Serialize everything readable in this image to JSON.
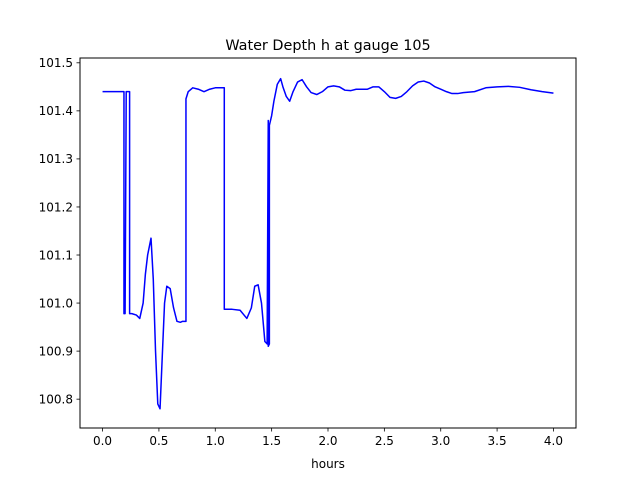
{
  "chart_data": {
    "type": "line",
    "title": "Water Depth h at gauge 105",
    "xlabel": "hours",
    "ylabel": "",
    "xlim": [
      -0.2,
      4.2
    ],
    "ylim": [
      100.74,
      101.51
    ],
    "xticks": [
      0.0,
      0.5,
      1.0,
      1.5,
      2.0,
      2.5,
      3.0,
      3.5,
      4.0
    ],
    "xtick_labels": [
      "0.0",
      "0.5",
      "1.0",
      "1.5",
      "2.0",
      "2.5",
      "3.0",
      "3.5",
      "4.0"
    ],
    "yticks": [
      100.8,
      100.9,
      101.0,
      101.1,
      101.2,
      101.3,
      101.4,
      101.5
    ],
    "ytick_labels": [
      "100.8",
      "100.9",
      "101.0",
      "101.1",
      "101.2",
      "101.3",
      "101.4",
      "101.5"
    ],
    "grid": false,
    "series": [
      {
        "color": "#0000ff",
        "x": [
          0.0,
          0.1,
          0.18,
          0.19,
          0.19,
          0.2,
          0.21,
          0.21,
          0.22,
          0.23,
          0.24,
          0.24,
          0.26,
          0.3,
          0.33,
          0.36,
          0.38,
          0.4,
          0.43,
          0.45,
          0.47,
          0.49,
          0.51,
          0.53,
          0.55,
          0.57,
          0.6,
          0.63,
          0.66,
          0.69,
          0.71,
          0.74,
          0.74,
          0.76,
          0.8,
          0.85,
          0.9,
          0.95,
          1.0,
          1.05,
          1.08,
          1.08,
          1.15,
          1.22,
          1.28,
          1.32,
          1.35,
          1.38,
          1.41,
          1.44,
          1.46,
          1.47,
          1.47,
          1.48,
          1.48,
          1.5,
          1.52,
          1.55,
          1.58,
          1.6,
          1.63,
          1.66,
          1.69,
          1.73,
          1.77,
          1.81,
          1.85,
          1.9,
          1.95,
          2.0,
          2.05,
          2.1,
          2.15,
          2.2,
          2.25,
          2.3,
          2.35,
          2.4,
          2.45,
          2.5,
          2.55,
          2.6,
          2.65,
          2.7,
          2.75,
          2.8,
          2.85,
          2.9,
          2.95,
          3.0,
          3.05,
          3.1,
          3.15,
          3.2,
          3.3,
          3.4,
          3.5,
          3.6,
          3.7,
          3.8,
          3.9,
          4.0
        ],
        "y": [
          101.44,
          101.44,
          101.44,
          101.44,
          100.978,
          100.978,
          101.44,
          101.44,
          101.44,
          101.44,
          101.44,
          100.978,
          100.978,
          100.975,
          100.968,
          101.0,
          101.06,
          101.1,
          101.135,
          101.05,
          100.9,
          100.79,
          100.78,
          100.89,
          101.0,
          101.035,
          101.03,
          100.99,
          100.962,
          100.96,
          100.962,
          100.962,
          101.425,
          101.44,
          101.448,
          101.445,
          101.44,
          101.445,
          101.448,
          101.448,
          101.448,
          100.987,
          100.987,
          100.985,
          100.968,
          100.99,
          101.035,
          101.038,
          101.0,
          100.92,
          100.915,
          101.38,
          100.91,
          100.915,
          101.37,
          101.39,
          101.42,
          101.455,
          101.467,
          101.45,
          101.43,
          101.42,
          101.44,
          101.46,
          101.465,
          101.45,
          101.438,
          101.434,
          101.44,
          101.45,
          101.452,
          101.45,
          101.443,
          101.442,
          101.445,
          101.445,
          101.445,
          101.45,
          101.45,
          101.44,
          101.428,
          101.426,
          101.43,
          101.44,
          101.452,
          101.46,
          101.462,
          101.458,
          101.45,
          101.445,
          101.44,
          101.436,
          101.436,
          101.438,
          101.44,
          101.448,
          101.45,
          101.451,
          101.449,
          101.444,
          101.44,
          101.437
        ]
      }
    ]
  }
}
